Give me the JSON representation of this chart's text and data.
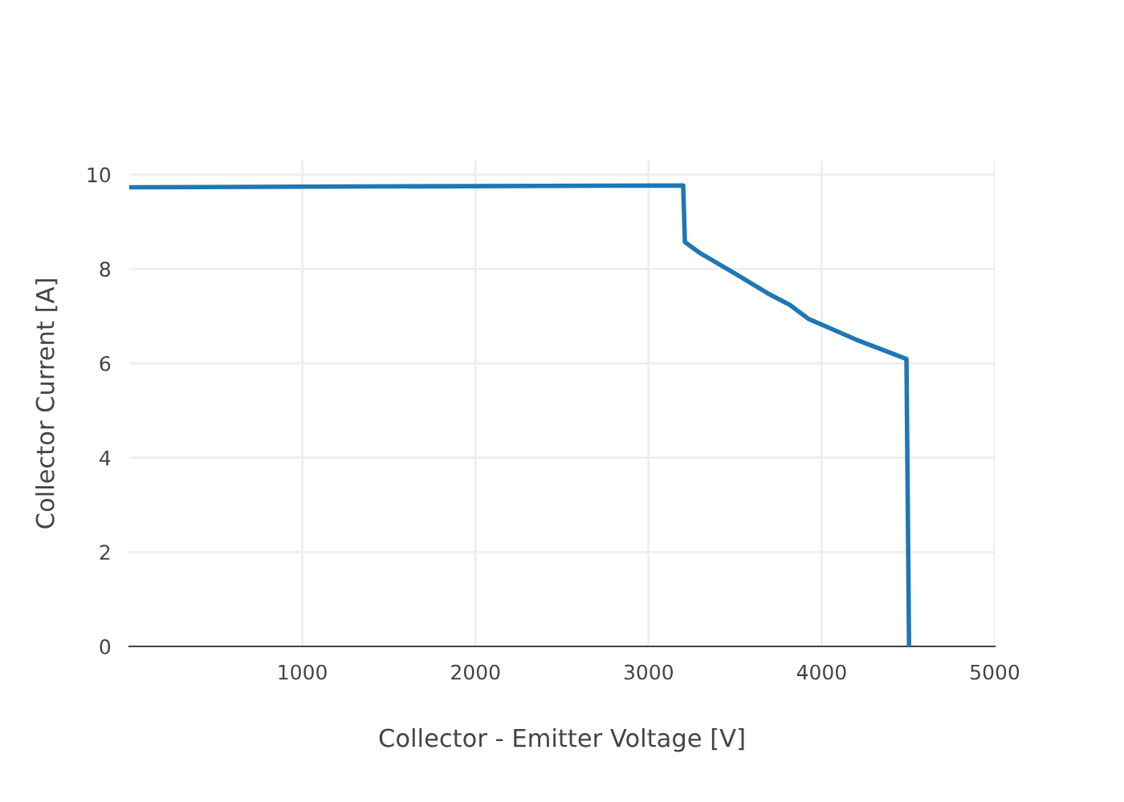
{
  "chart_data": {
    "type": "line",
    "xlabel": "Collector - Emitter Voltage [V]",
    "ylabel": "Collector Current [A]",
    "xlim": [
      0,
      5000
    ],
    "xticks": [
      1000,
      2000,
      3000,
      4000,
      5000
    ],
    "ylim": [
      0,
      10.3
    ],
    "yticks": [
      0,
      2,
      4,
      6,
      8,
      10
    ],
    "grid": true,
    "marker": "none",
    "line_style": "solid",
    "series": [
      {
        "color": "#1f77b4",
        "x": [
          0,
          3200,
          3210,
          3300,
          3500,
          3690,
          3815,
          3925,
          4200,
          4370,
          4490,
          4505
        ],
        "values": [
          9.73,
          9.77,
          8.57,
          8.33,
          7.9,
          7.48,
          7.24,
          6.94,
          6.5,
          6.26,
          6.09,
          0
        ]
      }
    ]
  }
}
